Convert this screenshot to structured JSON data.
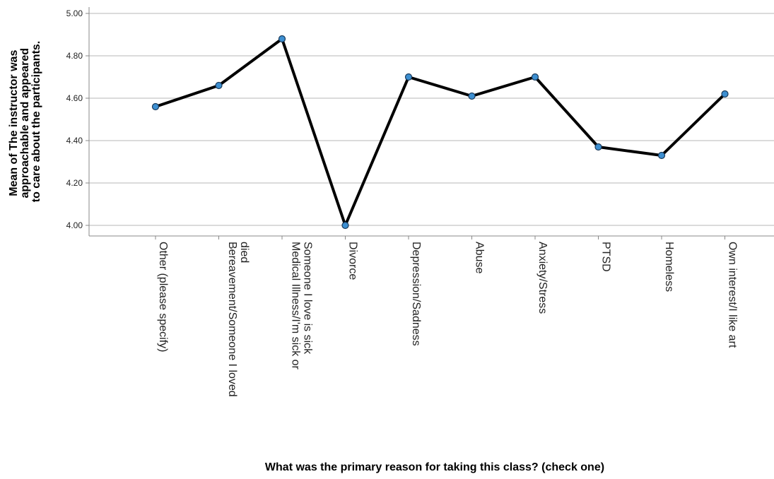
{
  "chart_data": {
    "type": "line",
    "categories": [
      [
        "Other (please specify)"
      ],
      [
        "Bereavement/Someone I loved",
        "died"
      ],
      [
        "Medical Illness/I'm sick or",
        "Someone I love is sick"
      ],
      [
        "Divorce"
      ],
      [
        "Depression/Sadness"
      ],
      [
        "Abuse"
      ],
      [
        "Anxiety/Stress"
      ],
      [
        "PTSD"
      ],
      [
        "Homeless"
      ],
      [
        "Own interest/I like art"
      ]
    ],
    "values": [
      4.56,
      4.66,
      4.88,
      4.0,
      4.7,
      4.61,
      4.7,
      4.37,
      4.33,
      4.62
    ],
    "xlabel": "What was the primary reason for taking this class? (check one)",
    "ylabel": [
      "Mean of The instructor was",
      "approachable and appeared",
      "to care about the participants."
    ],
    "ylim": [
      3.95,
      5.05
    ],
    "yticks": [
      "4.00",
      "4.20",
      "4.40",
      "4.60",
      "4.80",
      "5.00"
    ],
    "grid": true,
    "colors": {
      "line": "#000000",
      "marker_fill": "#3d8fd1",
      "marker_stroke": "#1a3a5a",
      "grid": "#cfcfcf",
      "axis": "#888888"
    }
  }
}
